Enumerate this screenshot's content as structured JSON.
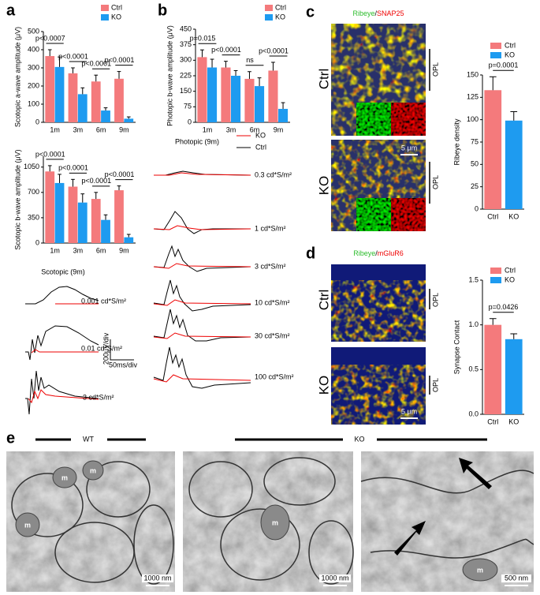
{
  "panel_labels": [
    "a",
    "b",
    "c",
    "d",
    "e"
  ],
  "chart_data": [
    {
      "type": "bar",
      "ylabel": "Scotopic a-wave amplitude (μV)",
      "categories": [
        "1m",
        "3m",
        "6m",
        "9m"
      ],
      "series": [
        {
          "name": "Ctrl",
          "color": "#f47a7c",
          "values": [
            365,
            270,
            225,
            240
          ],
          "errors": [
            35,
            30,
            35,
            40
          ]
        },
        {
          "name": "KO",
          "color": "#1e9bf0",
          "values": [
            305,
            155,
            65,
            20
          ],
          "errors": [
            55,
            35,
            15,
            10
          ]
        }
      ],
      "ylim": [
        0,
        500
      ],
      "yticks": [
        0,
        100,
        200,
        300,
        400,
        500
      ],
      "legend": "top-right",
      "annotations": [
        "p<0.0007",
        "p<0.0001",
        "p<0.0001",
        "p<0.0001"
      ]
    },
    {
      "type": "bar",
      "ylabel": "Scotopic b-wave amplitude (μV)",
      "categories": [
        "1m",
        "3m",
        "6m",
        "9m"
      ],
      "series": [
        {
          "name": "Ctrl",
          "color": "#f47a7c",
          "values": [
            990,
            780,
            610,
            730
          ],
          "errors": [
            80,
            100,
            90,
            60
          ]
        },
        {
          "name": "KO",
          "color": "#1e9bf0",
          "values": [
            830,
            560,
            320,
            80
          ],
          "errors": [
            120,
            120,
            70,
            40
          ]
        }
      ],
      "ylim": [
        0,
        1200
      ],
      "yticks": [
        0,
        350,
        700,
        1050
      ],
      "annotations": [
        "p<0.0001",
        "p<0.0001",
        "p<0.0001",
        "p<0.0001"
      ]
    },
    {
      "type": "bar",
      "ylabel": "Photopic b-wave amplitude (μV)",
      "categories": [
        "1m",
        "3m",
        "6m",
        "9m"
      ],
      "series": [
        {
          "name": "Ctrl",
          "color": "#f47a7c",
          "values": [
            315,
            265,
            210,
            250
          ],
          "errors": [
            35,
            30,
            35,
            40
          ]
        },
        {
          "name": "KO",
          "color": "#1e9bf0",
          "values": [
            265,
            225,
            175,
            65
          ],
          "errors": [
            40,
            25,
            40,
            30
          ]
        }
      ],
      "ylim": [
        0,
        450
      ],
      "yticks": [
        0,
        75,
        150,
        225,
        300,
        375,
        450
      ],
      "legend": "top-right",
      "annotations": [
        "p=0.015",
        "p<0.0001",
        "ns",
        "p<0.0001"
      ]
    },
    {
      "type": "bar",
      "ylabel": "Ribeye density",
      "categories": [
        "Ctrl",
        "KO"
      ],
      "values": [
        133,
        99
      ],
      "errors": [
        15,
        10
      ],
      "colors": [
        "#f47a7c",
        "#1e9bf0"
      ],
      "ylim": [
        0,
        150
      ],
      "yticks": [
        0,
        25,
        50,
        75,
        100,
        125,
        150
      ],
      "legend": "top-right",
      "annotations": [
        "p=0.0001"
      ]
    },
    {
      "type": "bar",
      "ylabel": "Synapse Contact",
      "categories": [
        "Ctrl",
        "KO"
      ],
      "values": [
        1.0,
        0.84
      ],
      "errors": [
        0.07,
        0.06
      ],
      "colors": [
        "#f47a7c",
        "#1e9bf0"
      ],
      "ylim": [
        0,
        1.5
      ],
      "yticks": [
        {
          "value": 0,
          "label": "0.0"
        },
        0.5,
        {
          "value": 1,
          "label": "1.0"
        },
        1.5
      ],
      "legend": "top-right",
      "annotations": [
        "p=0.0426"
      ]
    }
  ],
  "scotopic_traces": {
    "title": "Scotopic (9m)",
    "intensities": [
      "0.001 cd*S/m²",
      "0.01 cd*S/m²",
      "3 cd*S/m²"
    ],
    "scale_y": "200μV/div",
    "scale_x": "50ms/div"
  },
  "photopic_traces": {
    "title": "Photopic (9m)",
    "legend": [
      "KO",
      "Ctrl"
    ],
    "intensities": [
      "0.3 cd*S/m²",
      "1 cd*S/m²",
      "3 cd*S/m²",
      "10 cd*S/m²",
      "30 cd*S/m²",
      "100 cd*S/m²"
    ]
  },
  "panel_c": {
    "title": [
      "Ribeye",
      "/",
      "SNAP25"
    ],
    "rows": [
      "Ctrl",
      "KO"
    ],
    "layer": "OPL",
    "scale": "5 μm"
  },
  "panel_d": {
    "title": [
      "Ribeye",
      "/",
      "mGluR6"
    ],
    "rows": [
      "Ctrl",
      "KO"
    ],
    "layer": "OPL",
    "scale": "5 μm"
  },
  "panel_e": {
    "groups": [
      "WT",
      "KO"
    ],
    "scales": [
      "1000 nm",
      "1000 nm",
      "500 nm"
    ],
    "mito": "m"
  }
}
